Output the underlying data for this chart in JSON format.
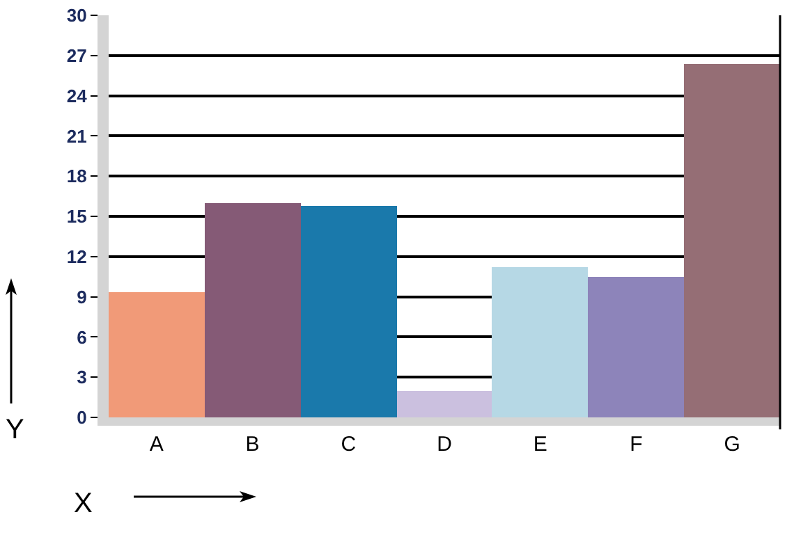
{
  "chart_data": {
    "type": "bar",
    "xlabel": "X",
    "ylabel": "Y",
    "categories": [
      "A",
      "B",
      "C",
      "D",
      "E",
      "F",
      "G"
    ],
    "values": [
      9.3,
      16,
      15.8,
      2,
      11.2,
      10.5,
      26.4
    ],
    "colors": [
      "#f19a78",
      "#855a76",
      "#1a79ab",
      "#cbc0df",
      "#b6d8e5",
      "#8d84ba",
      "#956e75"
    ],
    "ylim": [
      0,
      30
    ],
    "yticks": [
      0,
      3,
      6,
      9,
      12,
      15,
      18,
      21,
      24,
      27,
      30
    ],
    "grid": "y"
  }
}
